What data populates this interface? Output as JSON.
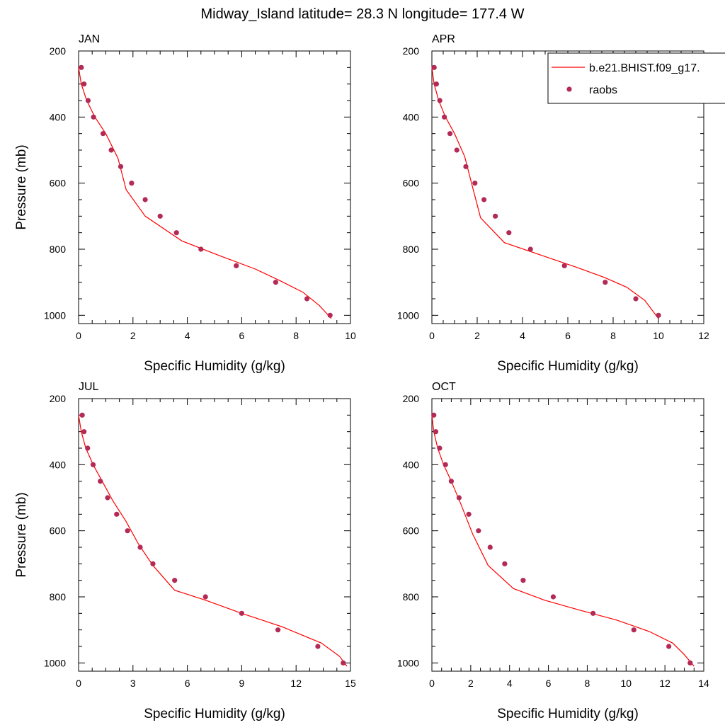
{
  "figure": {
    "title": "Midway_Island  latitude= 28.3 N longitude= 177.4 W"
  },
  "legend": {
    "placement": "top-right",
    "entries": [
      {
        "label": "b.e21.BHIST.f09_g17.",
        "kind": "line",
        "color": "#ff0000"
      },
      {
        "label": "raobs",
        "kind": "marker",
        "color": "#b22a55"
      }
    ]
  },
  "chart_data": [
    {
      "type": "line",
      "panel_label": "JAN",
      "xlabel": "Specific Humidity (g/kg)",
      "ylabel": "Pressure (mb)",
      "xlim": [
        0,
        10
      ],
      "ylim": [
        200,
        1025
      ],
      "y_inverted": true,
      "x_ticks": [
        0,
        2,
        4,
        6,
        8,
        10
      ],
      "y_ticks": [
        200,
        400,
        600,
        800,
        1000
      ],
      "series": [
        {
          "name": "b.e21.BHIST.f09_g17.",
          "kind": "line",
          "color": "#ff0000",
          "x": [
            0.0,
            0.1,
            0.3,
            0.6,
            1.0,
            1.45,
            1.75,
            2.45,
            3.8,
            5.2,
            6.5,
            7.4,
            8.25,
            8.85,
            9.3
          ],
          "y": [
            250,
            300,
            350,
            400,
            450,
            525,
            620,
            700,
            775,
            820,
            860,
            895,
            930,
            970,
            1010
          ]
        },
        {
          "name": "raobs",
          "kind": "scatter",
          "color": "#b22a55",
          "x": [
            0.1,
            0.2,
            0.35,
            0.55,
            0.9,
            1.2,
            1.55,
            1.95,
            2.45,
            3.0,
            3.6,
            4.5,
            5.8,
            7.25,
            8.4,
            9.25
          ],
          "y": [
            250,
            300,
            350,
            400,
            450,
            500,
            550,
            600,
            650,
            700,
            750,
            800,
            850,
            900,
            950,
            1000
          ]
        }
      ]
    },
    {
      "type": "line",
      "panel_label": "APR",
      "xlabel": "Specific Humidity (g/kg)",
      "ylabel": "",
      "xlim": [
        0,
        12
      ],
      "ylim": [
        200,
        1025
      ],
      "y_inverted": true,
      "x_ticks": [
        0,
        2,
        4,
        6,
        8,
        10,
        12
      ],
      "y_ticks": [
        200,
        400,
        600,
        800,
        1000
      ],
      "series": [
        {
          "name": "b.e21.BHIST.f09_g17.",
          "kind": "line",
          "color": "#ff0000",
          "x": [
            0.0,
            0.1,
            0.3,
            0.6,
            1.0,
            1.45,
            1.75,
            2.15,
            3.2,
            4.9,
            6.4,
            7.6,
            8.6,
            9.4,
            10.0
          ],
          "y": [
            250,
            300,
            350,
            400,
            450,
            520,
            600,
            705,
            780,
            820,
            855,
            885,
            915,
            955,
            1010
          ]
        },
        {
          "name": "raobs",
          "kind": "scatter",
          "color": "#b22a55",
          "x": [
            0.1,
            0.2,
            0.35,
            0.55,
            0.8,
            1.1,
            1.5,
            1.9,
            2.3,
            2.8,
            3.4,
            4.35,
            5.85,
            7.65,
            9.0,
            10.0
          ],
          "y": [
            250,
            300,
            350,
            400,
            450,
            500,
            550,
            600,
            650,
            700,
            750,
            800,
            850,
            900,
            950,
            1000
          ]
        }
      ]
    },
    {
      "type": "line",
      "panel_label": "JUL",
      "xlabel": "Specific Humidity (g/kg)",
      "ylabel": "Pressure (mb)",
      "xlim": [
        0,
        15
      ],
      "ylim": [
        200,
        1025
      ],
      "y_inverted": true,
      "x_ticks": [
        0,
        3,
        6,
        9,
        12,
        15
      ],
      "y_ticks": [
        200,
        400,
        600,
        800,
        1000
      ],
      "series": [
        {
          "name": "b.e21.BHIST.f09_g17.",
          "kind": "line",
          "color": "#ff0000",
          "x": [
            0.0,
            0.15,
            0.4,
            0.8,
            1.3,
            1.9,
            2.6,
            3.3,
            4.1,
            5.3,
            7.0,
            9.0,
            11.2,
            13.4,
            14.4,
            14.8
          ],
          "y": [
            250,
            300,
            350,
            400,
            450,
            510,
            570,
            640,
            705,
            780,
            810,
            850,
            890,
            940,
            980,
            1010
          ]
        },
        {
          "name": "raobs",
          "kind": "scatter",
          "color": "#b22a55",
          "x": [
            0.2,
            0.3,
            0.5,
            0.8,
            1.2,
            1.6,
            2.1,
            2.7,
            3.4,
            4.1,
            5.3,
            7.0,
            9.0,
            11.0,
            13.2,
            14.6
          ],
          "y": [
            250,
            300,
            350,
            400,
            450,
            500,
            550,
            600,
            650,
            700,
            750,
            800,
            850,
            900,
            950,
            1000
          ]
        }
      ]
    },
    {
      "type": "line",
      "panel_label": "OCT",
      "xlabel": "Specific Humidity (g/kg)",
      "ylabel": "",
      "xlim": [
        0,
        14
      ],
      "ylim": [
        200,
        1025
      ],
      "y_inverted": true,
      "x_ticks": [
        0,
        2,
        4,
        6,
        8,
        10,
        12,
        14
      ],
      "y_ticks": [
        200,
        400,
        600,
        800,
        1000
      ],
      "series": [
        {
          "name": "b.e21.BHIST.f09_g17.",
          "kind": "line",
          "color": "#ff0000",
          "x": [
            0.0,
            0.1,
            0.3,
            0.6,
            1.0,
            1.5,
            2.1,
            2.9,
            4.2,
            5.8,
            7.6,
            9.5,
            11.2,
            12.4,
            13.0,
            13.5
          ],
          "y": [
            250,
            300,
            350,
            400,
            450,
            520,
            610,
            705,
            775,
            810,
            840,
            870,
            905,
            940,
            975,
            1010
          ]
        },
        {
          "name": "raobs",
          "kind": "scatter",
          "color": "#b22a55",
          "x": [
            0.1,
            0.2,
            0.4,
            0.7,
            1.0,
            1.4,
            1.9,
            2.4,
            3.0,
            3.75,
            4.7,
            6.25,
            8.3,
            10.4,
            12.2,
            13.3
          ],
          "y": [
            250,
            300,
            350,
            400,
            450,
            500,
            550,
            600,
            650,
            700,
            750,
            800,
            850,
            900,
            950,
            1000
          ]
        }
      ]
    }
  ]
}
